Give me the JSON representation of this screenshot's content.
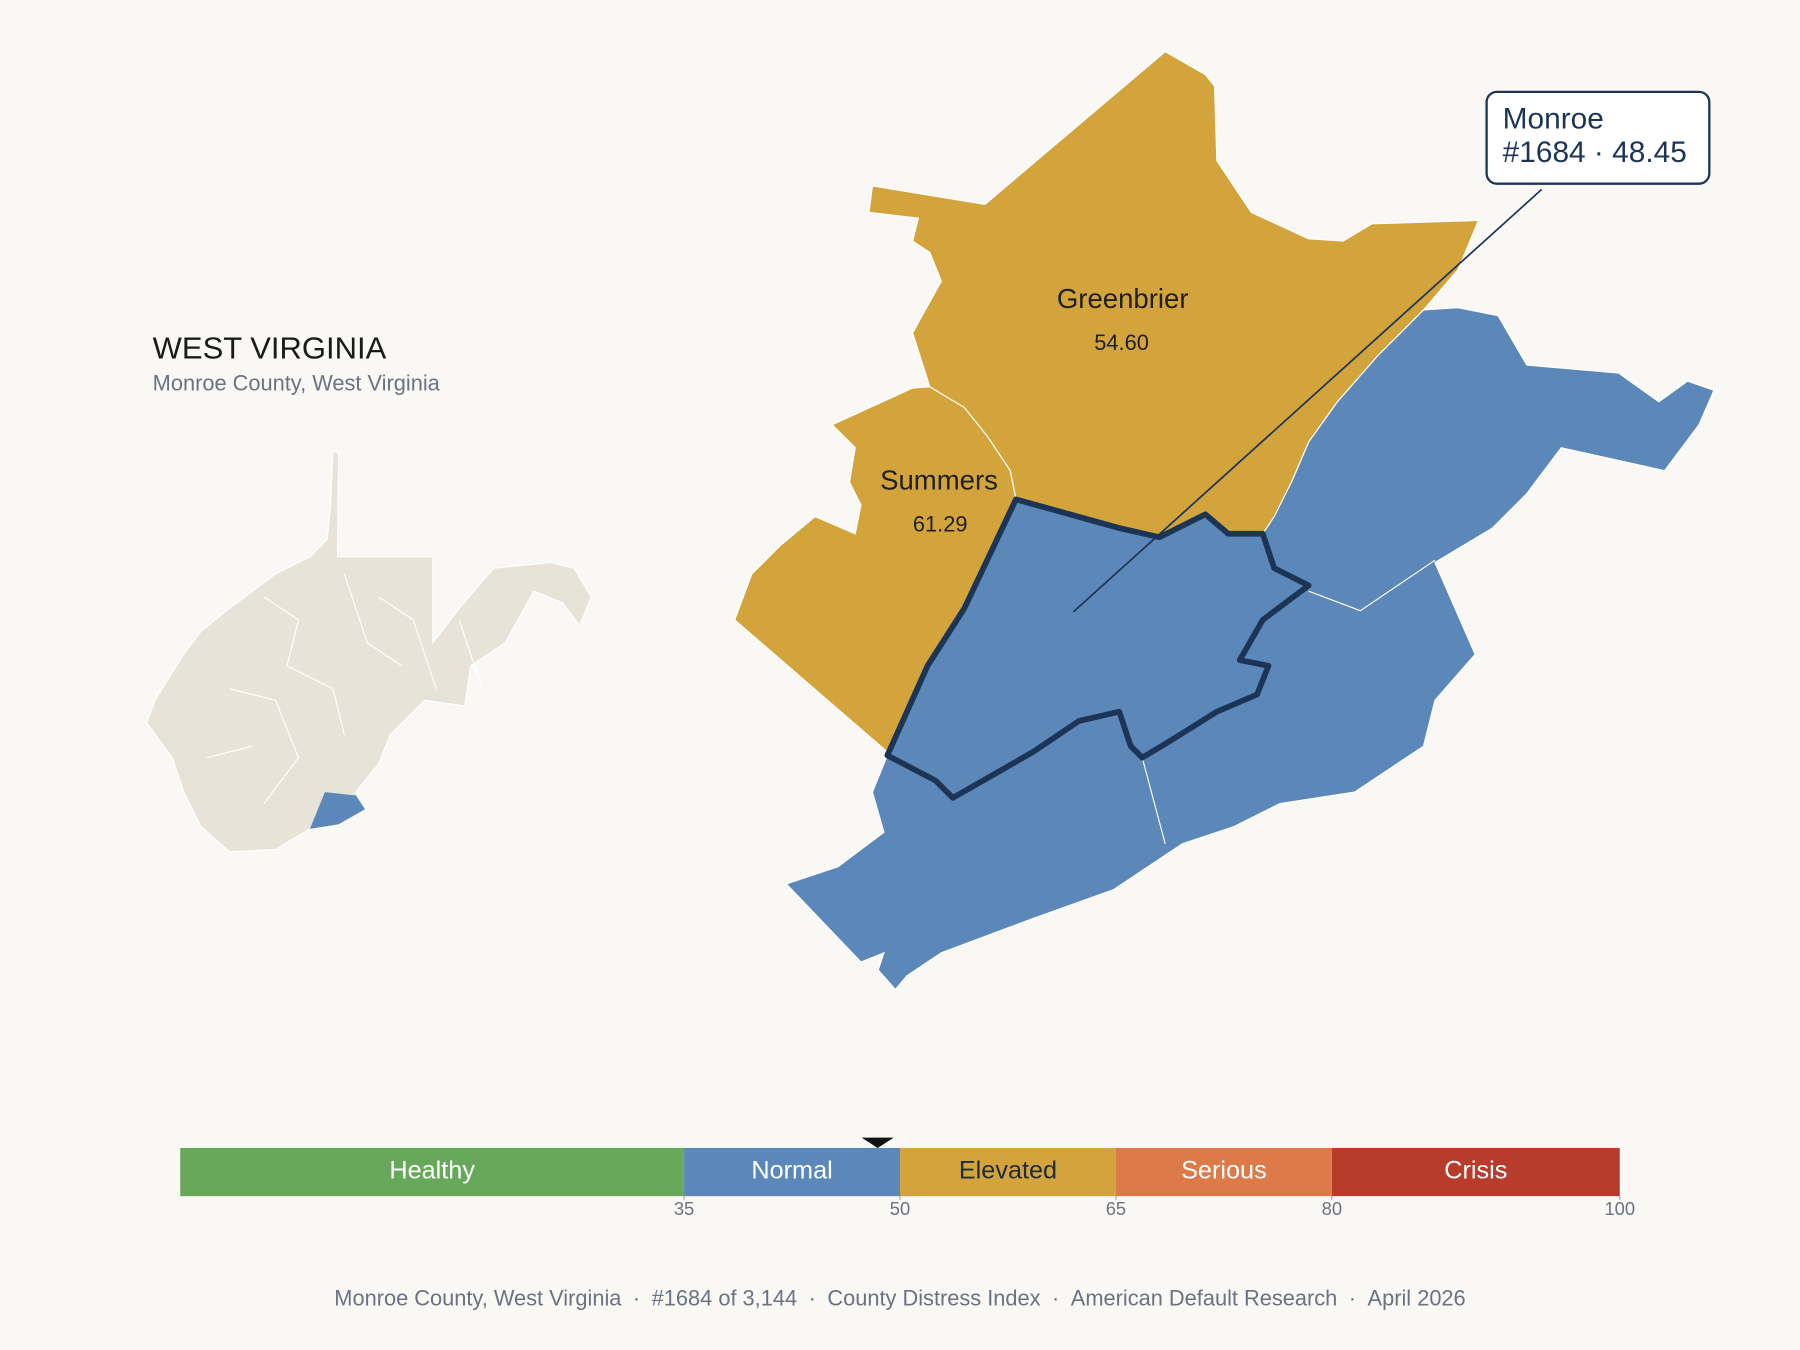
{
  "header": {
    "title": "WEST VIRGINIA",
    "subtitle": "Monroe County, West Virginia"
  },
  "map": {
    "counties": [
      {
        "name": "Greenbrier",
        "value": 54.6,
        "value_label": "54.60"
      },
      {
        "name": "Summers",
        "value": 61.29
      },
      {
        "name": "Monroe",
        "value": 48.45
      }
    ],
    "callout": {
      "rank": "#1684",
      "separator": "·"
    }
  },
  "scale": {
    "range": [
      0,
      100
    ],
    "bands": [
      {
        "label": "Healthy",
        "color": "#67a85a",
        "label_color": "#ffffff"
      },
      {
        "label": "Normal",
        "color": "#5b88b8",
        "label_color": "#ffffff"
      },
      {
        "label": "Elevated",
        "color": "#d3a43c",
        "label_color": "#1f2a3a"
      },
      {
        "label": "Serious",
        "color": "#dc7a4a",
        "label_color": "#ffffff"
      },
      {
        "label": "Crisis",
        "color": "#b83c2c",
        "label_color": "#ffffff"
      }
    ],
    "ticks": [
      35,
      50,
      65,
      80,
      100
    ]
  },
  "footer": {
    "parts": [
      "Monroe County, West Virginia",
      "#1684 of 3,144",
      "County Distress Index",
      "American Default Research",
      "April 2026"
    ],
    "separator": "·"
  }
}
